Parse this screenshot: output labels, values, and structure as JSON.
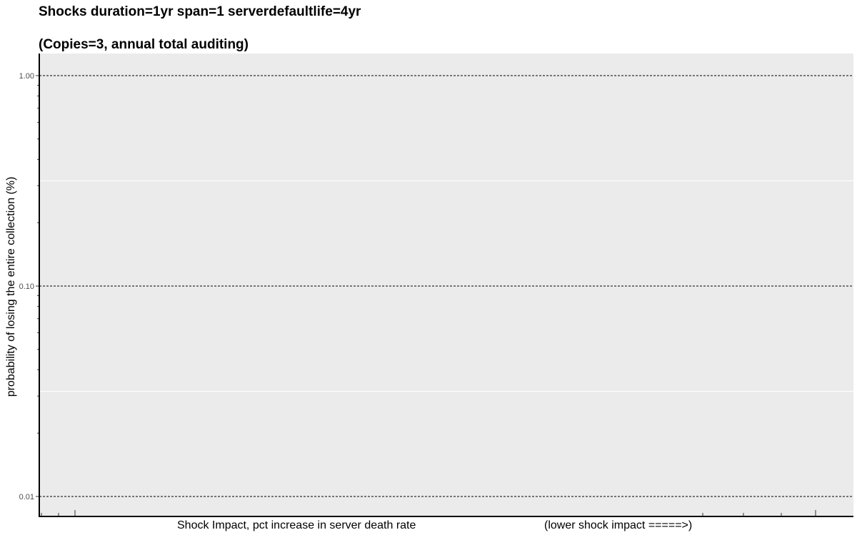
{
  "chart_data": {
    "type": "line",
    "title": "Shocks duration=1yr span=1 serverdefaultlife=4yr",
    "subtitle": "(Copies=3, annual total auditing)",
    "ylabel": "probability of losing the entire collection (%)",
    "xlabel": "Shock Impact, pct increase in server death rate",
    "xlabel_note": "(lower shock impact =====>)",
    "yscale": "log",
    "ylim": [
      0.0085,
      1.3
    ],
    "yticks": [
      1.0,
      0.1,
      0.01
    ],
    "ytick_labels": [
      "1.00",
      "0.10",
      "0.01"
    ],
    "grid": true,
    "series": [],
    "colors": {
      "panel": "#ebebeb",
      "gridline": "#000000",
      "minor_grid": "#ffffff"
    }
  }
}
